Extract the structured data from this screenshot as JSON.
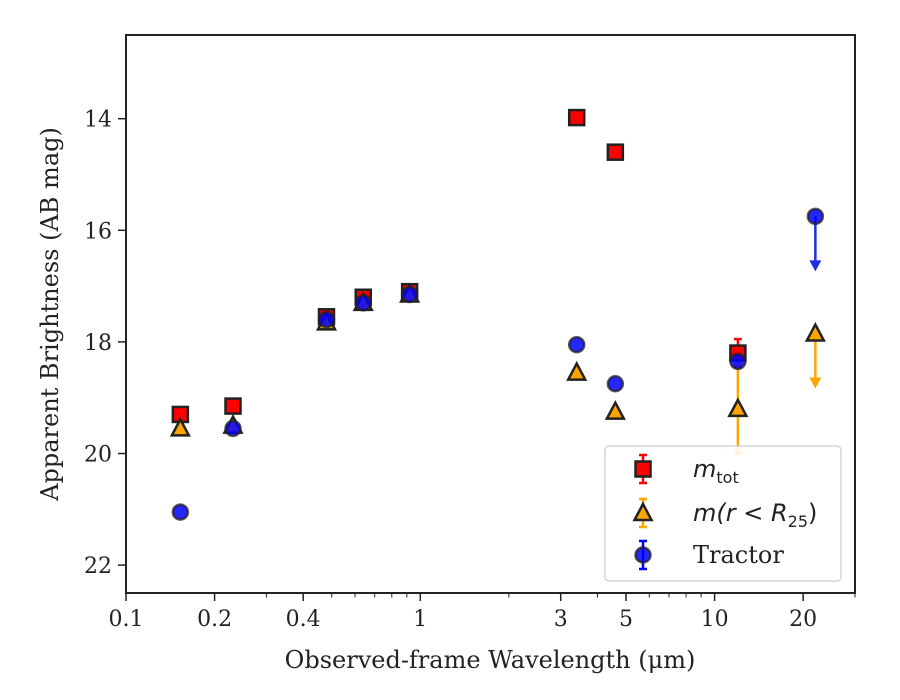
{
  "chart_data": {
    "type": "scatter",
    "xscale": "log",
    "yaxis": "inverted",
    "xlabel": "Observed-frame Wavelength (μm)",
    "ylabel": "Apparent Brightness (AB mag)",
    "xlim": [
      0.1,
      30
    ],
    "ylim": [
      22.5,
      12.5
    ],
    "xticks": [
      {
        "value": 0.1,
        "label": "0.1"
      },
      {
        "value": 0.2,
        "label": "0.2"
      },
      {
        "value": 0.4,
        "label": "0.4"
      },
      {
        "value": 1,
        "label": "1"
      },
      {
        "value": 3,
        "label": "3"
      },
      {
        "value": 5,
        "label": "5"
      },
      {
        "value": 10,
        "label": "10"
      },
      {
        "value": 20,
        "label": "20"
      }
    ],
    "yticks": [
      {
        "value": 14,
        "label": "14"
      },
      {
        "value": 16,
        "label": "16"
      },
      {
        "value": 18,
        "label": "18"
      },
      {
        "value": 20,
        "label": "20"
      },
      {
        "value": 22,
        "label": "22"
      }
    ],
    "grid": false,
    "legend_position": "lower right",
    "series": [
      {
        "key": "mtot",
        "name_main": "m",
        "name_sub": "tot",
        "marker": "square",
        "color": "#ff0000",
        "points": [
          {
            "x": 0.153,
            "y": 19.3
          },
          {
            "x": 0.231,
            "y": 19.15
          },
          {
            "x": 0.48,
            "y": 17.55
          },
          {
            "x": 0.64,
            "y": 17.2
          },
          {
            "x": 0.92,
            "y": 17.1
          },
          {
            "x": 3.4,
            "y": 13.98
          },
          {
            "x": 4.6,
            "y": 14.6
          },
          {
            "x": 12.0,
            "y": 18.2,
            "yerr": 0.25
          }
        ]
      },
      {
        "key": "mr25",
        "name_main": "m(r < R",
        "name_sub": "25",
        "name_close": ")",
        "marker": "triangle",
        "color": "#ffa500",
        "points": [
          {
            "x": 0.153,
            "y": 19.55
          },
          {
            "x": 0.231,
            "y": 19.5
          },
          {
            "x": 0.48,
            "y": 17.65
          },
          {
            "x": 0.64,
            "y": 17.3
          },
          {
            "x": 0.92,
            "y": 17.15
          },
          {
            "x": 3.4,
            "y": 18.55
          },
          {
            "x": 4.6,
            "y": 19.25
          },
          {
            "x": 12.0,
            "y": 19.2,
            "yerr": 0.8
          },
          {
            "x": 22.0,
            "y": 17.85,
            "upper_limit": true,
            "arrow_to": 18.8
          }
        ]
      },
      {
        "key": "tractor",
        "name_main": "Tractor",
        "marker": "circle",
        "color": "#0000ff",
        "points": [
          {
            "x": 0.153,
            "y": 21.05
          },
          {
            "x": 0.231,
            "y": 19.55
          },
          {
            "x": 0.48,
            "y": 17.6
          },
          {
            "x": 0.64,
            "y": 17.3
          },
          {
            "x": 0.92,
            "y": 17.15
          },
          {
            "x": 3.4,
            "y": 18.05
          },
          {
            "x": 4.6,
            "y": 18.75
          },
          {
            "x": 12.0,
            "y": 18.35
          },
          {
            "x": 22.0,
            "y": 15.75,
            "upper_limit": true,
            "arrow_to": 16.7
          }
        ]
      }
    ]
  }
}
